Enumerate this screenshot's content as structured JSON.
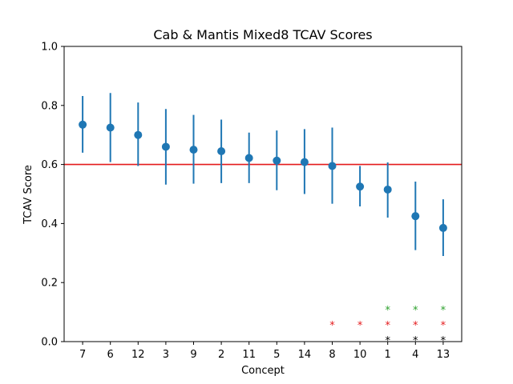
{
  "chart_data": {
    "type": "scatter",
    "title": "Cab & Mantis Mixed8 TCAV Scores",
    "xlabel": "Concept",
    "ylabel": "TCAV Score",
    "ylim": [
      0,
      1
    ],
    "yticks": [
      "0.0",
      "0.2",
      "0.4",
      "0.6",
      "0.8",
      "1.0"
    ],
    "categories": [
      "7",
      "6",
      "12",
      "3",
      "9",
      "2",
      "11",
      "5",
      "14",
      "8",
      "10",
      "1",
      "4",
      "13"
    ],
    "series": [
      {
        "values": [
          0.735,
          0.725,
          0.7,
          0.66,
          0.65,
          0.645,
          0.622,
          0.613,
          0.608,
          0.595,
          0.525,
          0.515,
          0.425,
          0.385
        ],
        "err_low": [
          0.64,
          0.608,
          0.595,
          0.532,
          0.535,
          0.537,
          0.537,
          0.513,
          0.5,
          0.467,
          0.458,
          0.42,
          0.31,
          0.29
        ],
        "err_high": [
          0.832,
          0.842,
          0.81,
          0.788,
          0.768,
          0.752,
          0.708,
          0.715,
          0.72,
          0.725,
          0.595,
          0.607,
          0.542,
          0.482
        ],
        "color": "#1f77b4"
      }
    ],
    "reference_line": {
      "y": 0.6,
      "color": "#e41a1c"
    },
    "significance_markers": {
      "symbol": "*",
      "rows": [
        {
          "color": "#000000",
          "categories": [
            "1",
            "4",
            "13"
          ]
        },
        {
          "color": "#e41a1c",
          "categories": [
            "8",
            "10",
            "1",
            "4",
            "13"
          ]
        },
        {
          "color": "#2ca02c",
          "categories": [
            "1",
            "4",
            "13"
          ]
        }
      ]
    },
    "grid": false,
    "legend": "none"
  }
}
